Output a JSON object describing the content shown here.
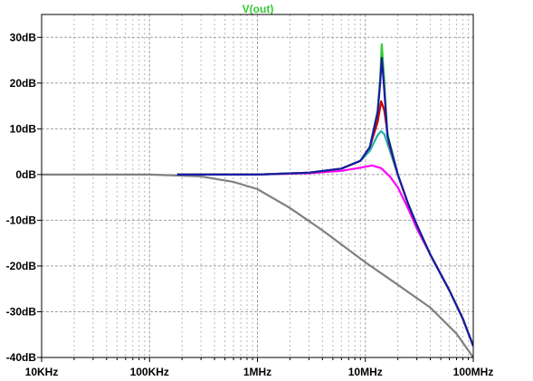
{
  "chart_data": {
    "type": "line",
    "title": "V(out)",
    "title_color": "#33cc33",
    "x_scale": "log",
    "xlim_hz": [
      10000,
      100000000
    ],
    "ylim_db": [
      -40,
      35
    ],
    "grid": true,
    "x_tick_labels": [
      {
        "value": 10000,
        "label": "10KHz"
      },
      {
        "value": 100000,
        "label": "100KHz"
      },
      {
        "value": 1000000,
        "label": "1MHz"
      },
      {
        "value": 10000000,
        "label": "10MHz"
      },
      {
        "value": 100000000,
        "label": "100MHz"
      }
    ],
    "y_tick_labels": [
      {
        "value": 30,
        "label": "30dB"
      },
      {
        "value": 20,
        "label": "20dB"
      },
      {
        "value": 10,
        "label": "10dB"
      },
      {
        "value": 0,
        "label": "0dB"
      },
      {
        "value": -10,
        "label": "-10dB"
      },
      {
        "value": -20,
        "label": "-20dB"
      },
      {
        "value": -30,
        "label": "-30dB"
      },
      {
        "value": -40,
        "label": "-40dB"
      }
    ],
    "series": [
      {
        "color": "#808080",
        "points": [
          [
            10000,
            0
          ],
          [
            100000,
            0
          ],
          [
            300000,
            -0.4
          ],
          [
            600000,
            -1.6
          ],
          [
            1000000,
            -3.2
          ],
          [
            2000000,
            -7.3
          ],
          [
            4000000,
            -12.2
          ],
          [
            10000000,
            -19.2
          ],
          [
            20000000,
            -24.1
          ],
          [
            40000000,
            -29.1
          ],
          [
            70000000,
            -34.8
          ],
          [
            100000000,
            -40
          ]
        ]
      },
      {
        "color": "#ff00ff",
        "points": [
          [
            180000,
            0
          ],
          [
            1000000,
            0
          ],
          [
            3000000,
            0.3
          ],
          [
            6000000,
            0.8
          ],
          [
            9000000,
            1.5
          ],
          [
            11500000,
            2.0
          ],
          [
            14000000,
            1.4
          ],
          [
            17000000,
            -0.5
          ],
          [
            20000000,
            -2.8
          ],
          [
            25000000,
            -7.5
          ],
          [
            30000000,
            -11.8
          ],
          [
            40000000,
            -17.5
          ],
          [
            60000000,
            -25.3
          ],
          [
            80000000,
            -31.5
          ],
          [
            100000000,
            -37.5
          ]
        ]
      },
      {
        "color": "#20b2aa",
        "points": [
          [
            180000,
            0
          ],
          [
            1000000,
            0
          ],
          [
            3000000,
            0.4
          ],
          [
            6000000,
            1.3
          ],
          [
            9000000,
            3.0
          ],
          [
            11000000,
            5.2
          ],
          [
            13000000,
            8.6
          ],
          [
            14000000,
            9.5
          ],
          [
            15000000,
            8.8
          ],
          [
            17000000,
            5.0
          ],
          [
            20000000,
            0
          ],
          [
            25000000,
            -6.5
          ],
          [
            30000000,
            -11.0
          ],
          [
            40000000,
            -17.5
          ],
          [
            60000000,
            -25.3
          ],
          [
            80000000,
            -31.5
          ],
          [
            100000000,
            -37.5
          ]
        ]
      },
      {
        "color": "#cc0000",
        "points": [
          [
            180000,
            0
          ],
          [
            1000000,
            0
          ],
          [
            3000000,
            0.4
          ],
          [
            6000000,
            1.3
          ],
          [
            9000000,
            3.0
          ],
          [
            11000000,
            6.0
          ],
          [
            13000000,
            11.5
          ],
          [
            14000000,
            16.0
          ],
          [
            15000000,
            14.0
          ],
          [
            16500000,
            7.0
          ],
          [
            20000000,
            0
          ],
          [
            25000000,
            -6.5
          ],
          [
            30000000,
            -11.0
          ],
          [
            40000000,
            -17.5
          ],
          [
            60000000,
            -25.3
          ],
          [
            80000000,
            -31.5
          ],
          [
            100000000,
            -37.5
          ]
        ]
      },
      {
        "color": "#33cc33",
        "points": [
          [
            180000,
            0
          ],
          [
            1000000,
            0
          ],
          [
            3000000,
            0.4
          ],
          [
            6000000,
            1.3
          ],
          [
            9000000,
            3.0
          ],
          [
            11000000,
            6.0
          ],
          [
            13000000,
            14.0
          ],
          [
            13700000,
            21.0
          ],
          [
            14200000,
            28.5
          ],
          [
            14800000,
            22.0
          ],
          [
            16000000,
            9.0
          ],
          [
            20000000,
            0
          ],
          [
            25000000,
            -6.5
          ],
          [
            30000000,
            -11.0
          ],
          [
            40000000,
            -17.5
          ],
          [
            60000000,
            -25.3
          ],
          [
            80000000,
            -31.5
          ],
          [
            100000000,
            -37.5
          ]
        ]
      },
      {
        "color": "#1a1aa6",
        "points": [
          [
            180000,
            0
          ],
          [
            1000000,
            0
          ],
          [
            3000000,
            0.4
          ],
          [
            6000000,
            1.3
          ],
          [
            9000000,
            3.0
          ],
          [
            11000000,
            6.0
          ],
          [
            13000000,
            13.5
          ],
          [
            13700000,
            20.0
          ],
          [
            14200000,
            25.5
          ],
          [
            14800000,
            20.0
          ],
          [
            16000000,
            8.5
          ],
          [
            20000000,
            0
          ],
          [
            25000000,
            -6.5
          ],
          [
            30000000,
            -11.0
          ],
          [
            40000000,
            -17.5
          ],
          [
            60000000,
            -25.3
          ],
          [
            80000000,
            -31.5
          ],
          [
            100000000,
            -37.5
          ]
        ]
      }
    ]
  }
}
